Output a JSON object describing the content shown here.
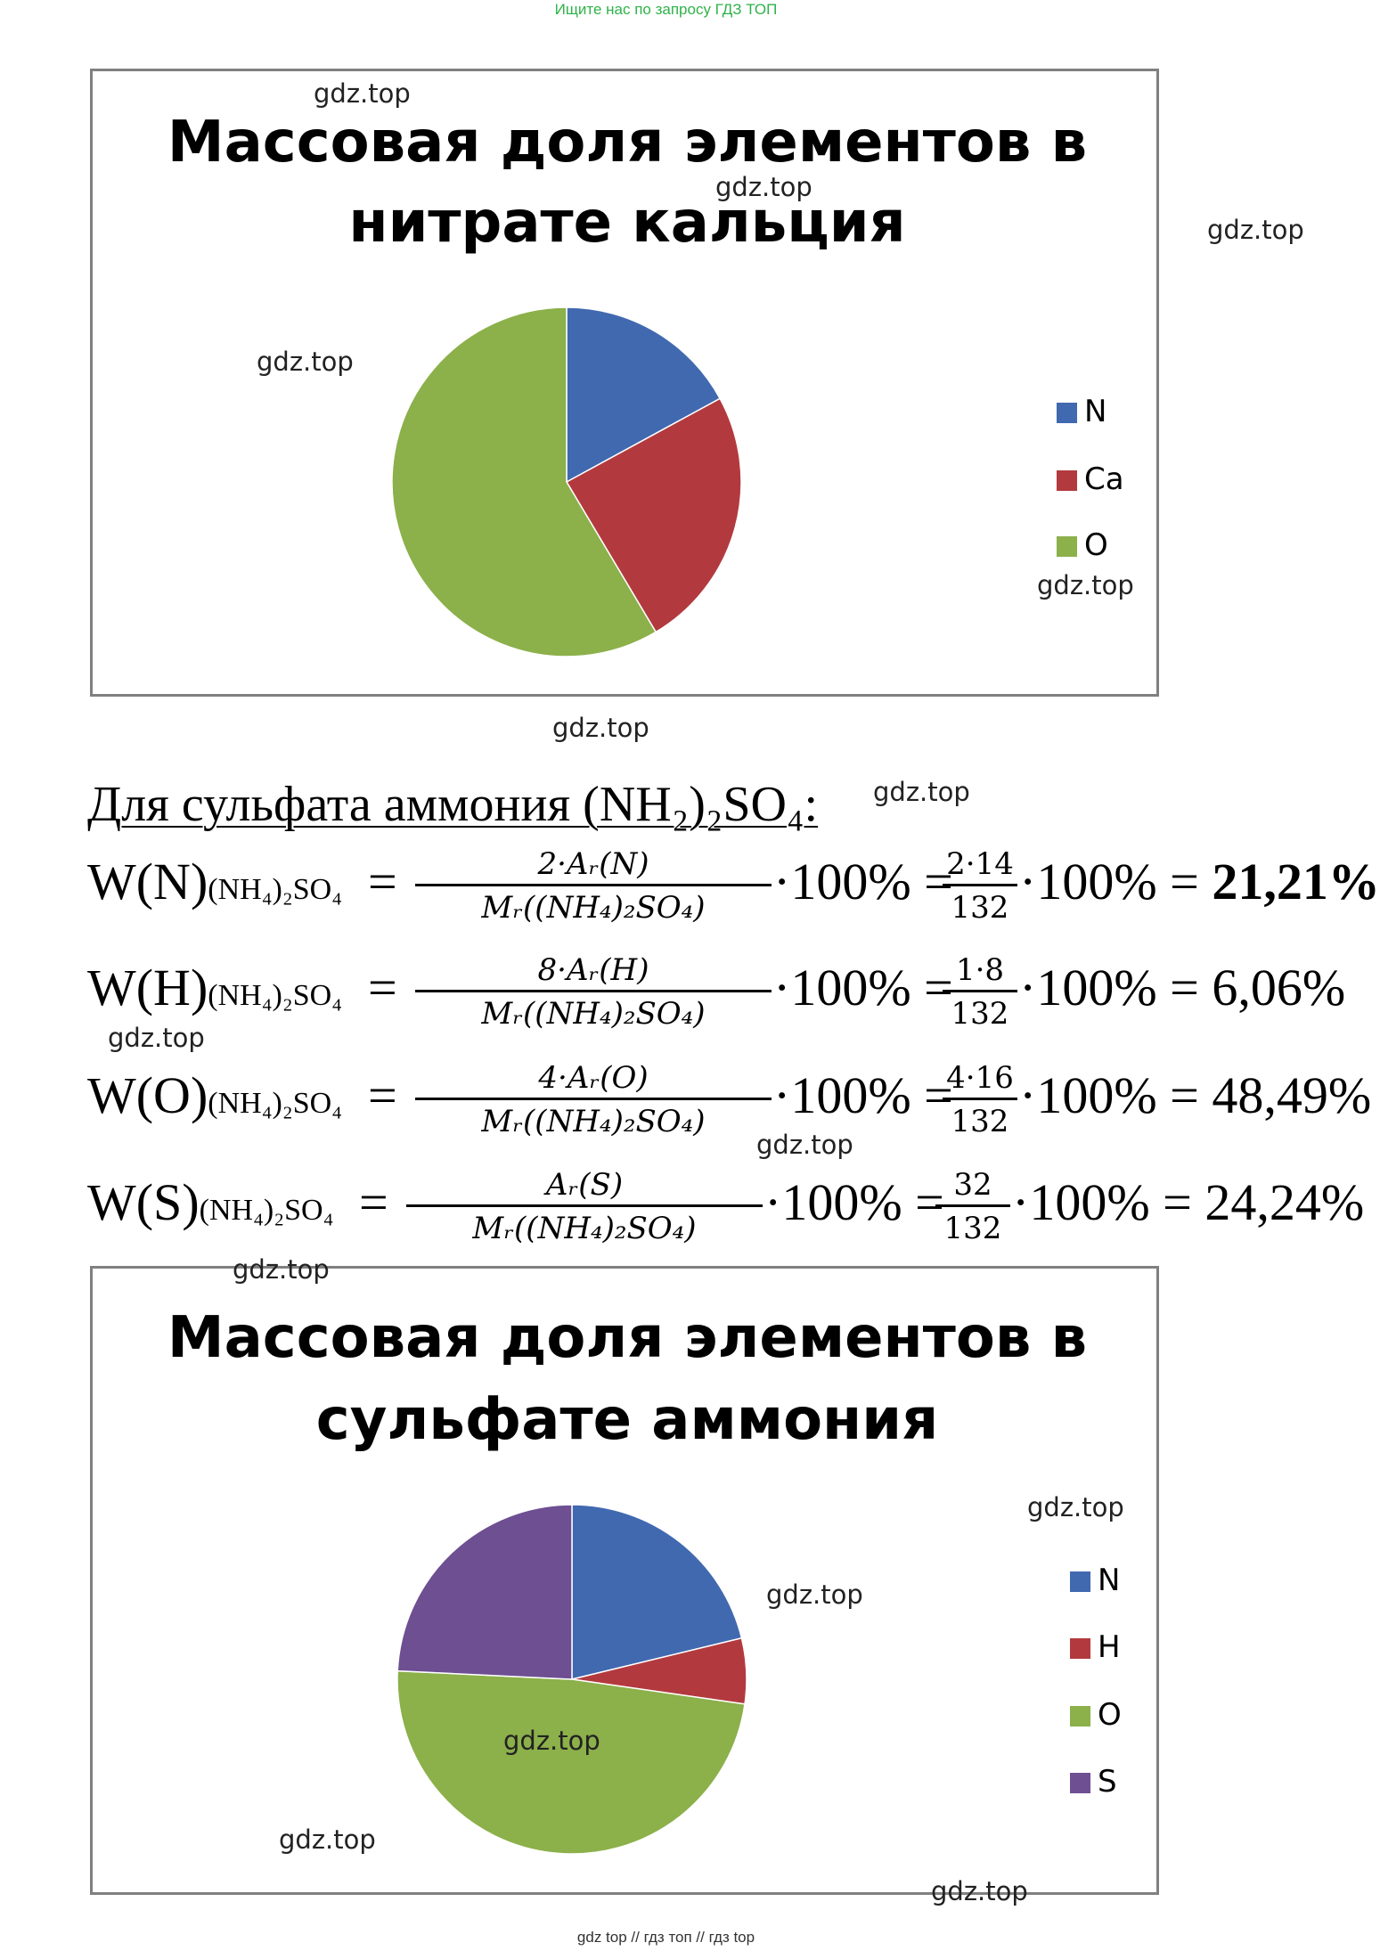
{
  "top_note": "Ищите нас по запросу ГДЗ ТОП",
  "watermark": "gdz.top",
  "footer": "gdz top  //  гдз топ  //  гдз top",
  "chart_data": [
    {
      "type": "pie",
      "title_line1": "Массовая доля элементов в",
      "title_line2": "нитрате кальция",
      "legend": "right",
      "categories": [
        "N",
        "Ca",
        "O"
      ],
      "values": [
        17.07,
        24.39,
        58.54
      ],
      "colors": [
        "#4169b0",
        "#b23a3e",
        "#8cb04a"
      ]
    },
    {
      "type": "pie",
      "title_line1": "Массовая доля элементов  в",
      "title_line2": "сульфате аммония",
      "legend": "right",
      "categories": [
        "N",
        "H",
        "O",
        "S"
      ],
      "values": [
        21.21,
        6.06,
        48.49,
        24.24
      ],
      "colors": [
        "#4169b0",
        "#b23a3e",
        "#8cb04a",
        "#6e4f92"
      ]
    }
  ],
  "section": {
    "heading": "Для сульфата аммония (NH₂)₂SO₄:",
    "rows": [
      {
        "lhs": "W(N)",
        "sub": "(NH₄)₂SO₄",
        "num": "2·Aᵣ(N)",
        "den": "Mᵣ((NH₄)₂SO₄)",
        "mid": "·100% =",
        "num2": "2·14",
        "den2": "132",
        "result": "·100% = ",
        "result_value": "21,21%"
      },
      {
        "lhs": "W(H)",
        "sub": "(NH₄)₂SO₄",
        "num": "8·Aᵣ(H)",
        "den": "Mᵣ((NH₄)₂SO₄)",
        "mid": "·100% =",
        "num2": "1·8",
        "den2": "132",
        "result": "·100% = ",
        "result_value": "6,06%"
      },
      {
        "lhs": "W(O)",
        "sub": "(NH₄)₂SO₄",
        "num": "4·Aᵣ(O)",
        "den": "Mᵣ((NH₄)₂SO₄)",
        "mid": "·100% =",
        "num2": "4·16",
        "den2": "132",
        "result": "·100% = ",
        "result_value": "48,49%"
      },
      {
        "lhs": "W(S)",
        "sub": "(NH₄)₂SO₄",
        "num": "Aᵣ(S)",
        "den": "Mᵣ((NH₄)₂SO₄)",
        "mid": "·100% =",
        "num2": "32",
        "den2": "132",
        "result": "·100% = ",
        "result_value": "24,24%"
      }
    ]
  }
}
